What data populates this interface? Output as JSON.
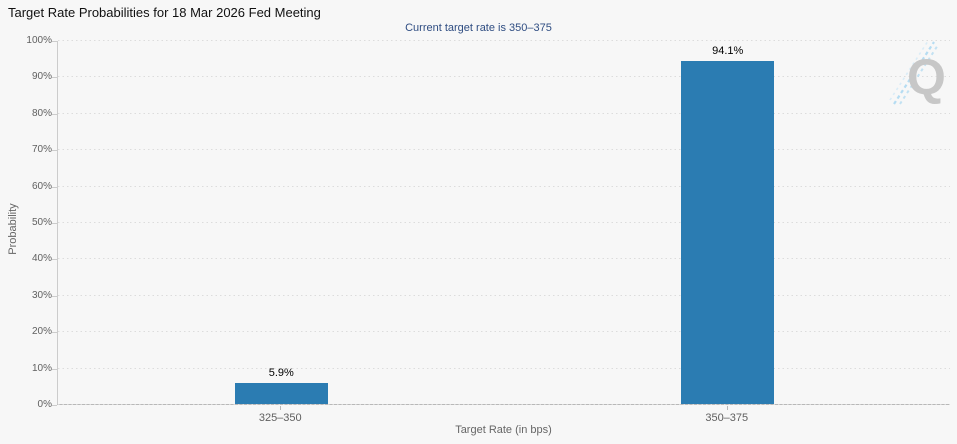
{
  "chart_data": {
    "type": "bar",
    "title": "Target Rate Probabilities for 18 Mar 2026 Fed Meeting",
    "subtitle": "Current target rate is 350–375",
    "categories": [
      "325–350",
      "350–375"
    ],
    "values": [
      5.9,
      94.1
    ],
    "value_labels": [
      "5.9%",
      "94.1%"
    ],
    "xlabel": "Target Rate (in bps)",
    "ylabel": "Probability",
    "ylim": [
      0,
      100
    ],
    "ytick_step": 10,
    "ytick_labels": [
      "0%",
      "10%",
      "20%",
      "30%",
      "40%",
      "50%",
      "60%",
      "70%",
      "80%",
      "90%",
      "100%"
    ],
    "legend": "none",
    "grid": "horizontal-dotted",
    "colors": {
      "bar": "#2b7cb2",
      "background": "#f7f7f7",
      "gridline": "#dcdcdc",
      "axis_line": "#b8b8b8",
      "axis_label": "#606060",
      "title": "#111111",
      "subtitle": "#2f4d82",
      "data_label": "#000000",
      "watermark_letter": "#c7c7c7",
      "watermark_slash": "#b5dcf2",
      "menu_icon": "#666666"
    }
  },
  "watermark": {
    "letter": "Q"
  },
  "icons": {
    "menu": "hamburger-menu-icon"
  }
}
